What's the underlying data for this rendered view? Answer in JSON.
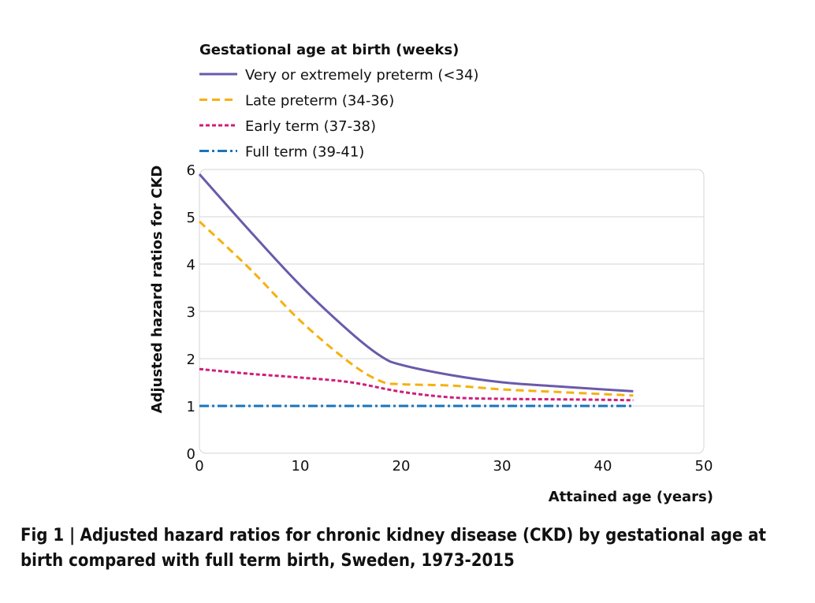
{
  "chart_data": {
    "type": "line",
    "title": "",
    "legend_title": "Gestational age at birth (weeks)",
    "legend_position": "top-left",
    "xlabel": "Attained age (years)",
    "ylabel": "Adjusted hazard ratios for CKD",
    "xlim": [
      0,
      50
    ],
    "ylim": [
      0,
      6
    ],
    "xticks": [
      "0",
      "10",
      "20",
      "30",
      "40",
      "50"
    ],
    "yticks": [
      "0",
      "1",
      "2",
      "3",
      "4",
      "5",
      "6"
    ],
    "grid": "horizontal",
    "series": [
      {
        "name": "Very or extremely preterm (<34)",
        "color": "#6a5aaa",
        "style": "solid",
        "x": [
          0,
          5,
          10,
          15,
          18,
          20,
          25,
          30,
          35,
          40,
          43
        ],
        "y": [
          5.9,
          4.7,
          3.55,
          2.55,
          2.05,
          1.87,
          1.65,
          1.5,
          1.42,
          1.35,
          1.31
        ]
      },
      {
        "name": "Late preterm (34-36)",
        "color": "#f5b10f",
        "style": "dashed",
        "x": [
          0,
          5,
          10,
          15,
          18,
          20,
          25,
          30,
          35,
          40,
          43
        ],
        "y": [
          4.9,
          3.9,
          2.8,
          1.9,
          1.52,
          1.46,
          1.43,
          1.35,
          1.3,
          1.25,
          1.22
        ]
      },
      {
        "name": "Early term (37-38)",
        "color": "#cc1f7a",
        "style": "dotted",
        "x": [
          0,
          5,
          10,
          15,
          20,
          25,
          30,
          35,
          40,
          43
        ],
        "y": [
          1.78,
          1.68,
          1.6,
          1.5,
          1.3,
          1.18,
          1.15,
          1.14,
          1.13,
          1.12
        ]
      },
      {
        "name": "Full term (39-41)",
        "color": "#1a75bb",
        "style": "dashdot",
        "x": [
          0,
          43
        ],
        "y": [
          1.0,
          1.0
        ]
      }
    ]
  },
  "caption": {
    "fig_number": "Fig 1 |",
    "text": "Adjusted hazard ratios for chronic kidney disease (CKD) by gestational age at birth compared with full term birth, Sweden, 1973-2015"
  }
}
